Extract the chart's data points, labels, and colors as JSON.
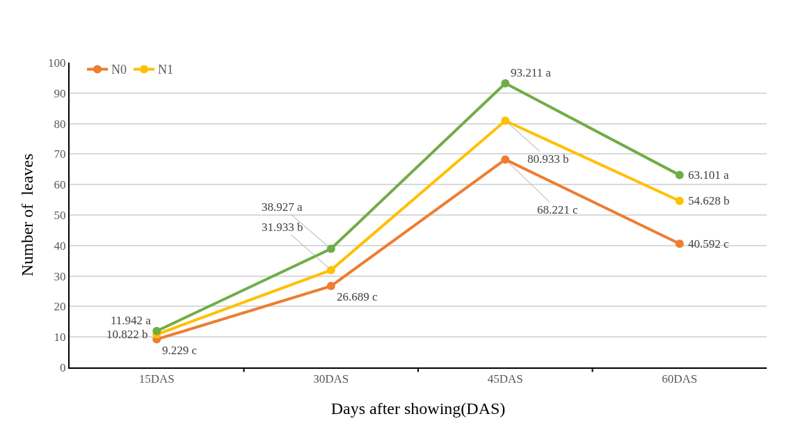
{
  "chart_data": {
    "type": "line",
    "xlabel": "Days after showing(DAS)",
    "ylabel": "Number of  leaves",
    "categories": [
      "15DAS",
      "30DAS",
      "45DAS",
      "60DAS"
    ],
    "series": [
      {
        "name": "N0",
        "color": "#ed7d31",
        "values": [
          9.229,
          26.689,
          68.221,
          40.592
        ],
        "value_labels": [
          "9.229 c",
          "26.689 c",
          "68.221 c",
          "40.592 c"
        ]
      },
      {
        "name": "N1",
        "color": "#ffc000",
        "values": [
          10.822,
          31.933,
          80.933,
          54.628
        ],
        "value_labels": [
          "10.822 b",
          "31.933 b",
          "80.933 b",
          "54.628 b"
        ]
      },
      {
        "color": "#70ad47",
        "values": [
          11.942,
          38.927,
          93.211,
          63.101
        ],
        "value_labels": [
          "11.942 a",
          "38.927 a",
          "93.211 a",
          "63.101 a"
        ]
      }
    ],
    "ylim": [
      0,
      100
    ],
    "yticks": [
      0,
      10,
      20,
      30,
      40,
      50,
      60,
      70,
      80,
      90,
      100
    ],
    "grid": "y",
    "legend": "top left",
    "marker": "circle",
    "line_style": "solid"
  }
}
